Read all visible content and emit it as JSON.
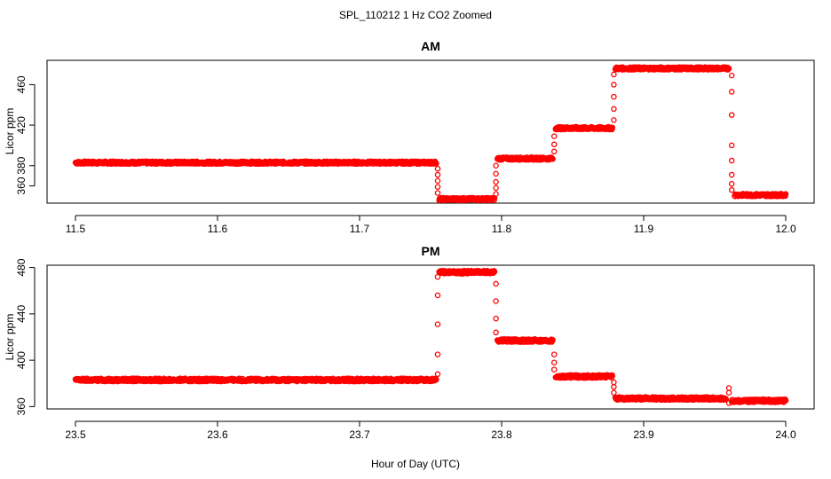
{
  "chart_data": {
    "title": "SPL_110212  1 Hz CO2 Zoomed",
    "xlabel": "Hour of Day (UTC)",
    "marker_color": "#ff0000",
    "panels": [
      {
        "type": "scatter",
        "title": "AM",
        "ylabel": "Licor ppm",
        "xlim": [
          11.48,
          12.02
        ],
        "ylim": [
          343,
          484
        ],
        "xticks": [
          11.5,
          11.6,
          11.7,
          11.8,
          11.9,
          12.0
        ],
        "xtick_labels": [
          "11.5",
          "11.6",
          "11.7",
          "11.8",
          "11.9",
          "12.0"
        ],
        "yticks": [
          360,
          380,
          420,
          460
        ],
        "ytick_labels": [
          "360",
          "380",
          "420",
          "460"
        ],
        "segments": [
          {
            "x_start": 11.5,
            "x_end": 11.754,
            "y": 383
          },
          {
            "x_start": 11.756,
            "x_end": 11.795,
            "y": 347
          },
          {
            "x_start": 11.797,
            "x_end": 11.836,
            "y": 387
          },
          {
            "x_start": 11.838,
            "x_end": 11.878,
            "y": 417
          },
          {
            "x_start": 11.88,
            "x_end": 11.96,
            "y": 476
          },
          {
            "x_start": 11.964,
            "x_end": 12.0,
            "y": 351
          }
        ],
        "transitions": [
          {
            "x": 11.755,
            "y": [
              377,
              371,
              365,
              359,
              353
            ]
          },
          {
            "x": 11.796,
            "y": [
              352,
              358,
              364,
              372,
              380
            ]
          },
          {
            "x": 11.837,
            "y": [
              394,
              401,
              409
            ]
          },
          {
            "x": 11.879,
            "y": [
              425,
              436,
              448,
              460,
              470
            ]
          },
          {
            "x": 11.962,
            "y": [
              469,
              453,
              430,
              400,
              385,
              371,
              362,
              356
            ]
          }
        ]
      },
      {
        "type": "scatter",
        "title": "PM",
        "ylabel": "Licor ppm",
        "xlim": [
          23.48,
          24.02
        ],
        "ylim": [
          358,
          482
        ],
        "xticks": [
          23.5,
          23.6,
          23.7,
          23.8,
          23.9,
          24.0
        ],
        "xtick_labels": [
          "23.5",
          "23.6",
          "23.7",
          "23.8",
          "23.9",
          "24.0"
        ],
        "yticks": [
          360,
          400,
          440,
          480
        ],
        "ytick_labels": [
          "360",
          "400",
          "440",
          "480"
        ],
        "segments": [
          {
            "x_start": 23.5,
            "x_end": 23.754,
            "y": 383
          },
          {
            "x_start": 23.756,
            "x_end": 23.795,
            "y": 476
          },
          {
            "x_start": 23.797,
            "x_end": 23.836,
            "y": 417
          },
          {
            "x_start": 23.838,
            "x_end": 23.878,
            "y": 386
          },
          {
            "x_start": 23.88,
            "x_end": 23.958,
            "y": 367
          },
          {
            "x_start": 23.962,
            "x_end": 24.0,
            "y": 365
          }
        ],
        "transitions": [
          {
            "x": 23.755,
            "y": [
              388,
              405,
              431,
              456,
              472
            ]
          },
          {
            "x": 23.796,
            "y": [
              466,
              451,
              436,
              424
            ]
          },
          {
            "x": 23.837,
            "y": [
              405,
              398,
              392
            ]
          },
          {
            "x": 23.879,
            "y": [
              381,
              377,
              372
            ]
          },
          {
            "x": 23.96,
            "y": [
              363,
              372,
              376
            ]
          }
        ]
      }
    ]
  }
}
